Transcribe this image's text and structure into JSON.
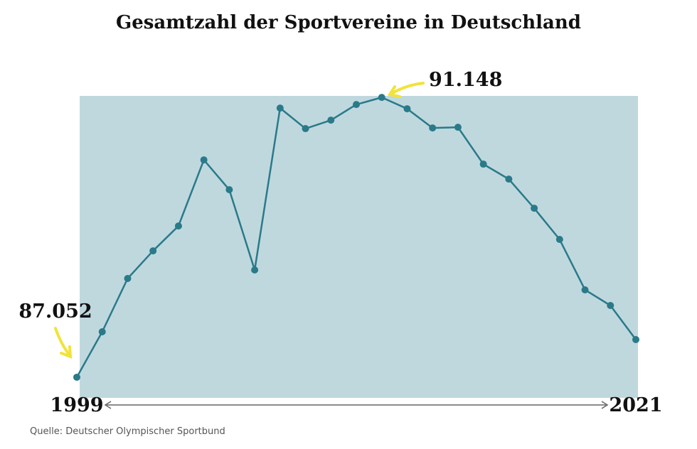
{
  "chart_data": {
    "type": "line",
    "title": "Gesamtzahl der Sportvereine in Deutschland",
    "source": "Quelle: Deutscher Olympischer Sportbund",
    "x": [
      1999,
      2000,
      2001,
      2002,
      2003,
      2004,
      2005,
      2006,
      2007,
      2008,
      2009,
      2010,
      2011,
      2012,
      2013,
      2014,
      2015,
      2016,
      2017,
      2018,
      2019,
      2020,
      2021
    ],
    "values": [
      87052,
      87717,
      88497,
      88902,
      89266,
      90233,
      89797,
      88622,
      90992,
      90691,
      90815,
      91044,
      91148,
      90982,
      90701,
      90711,
      90171,
      89952,
      89526,
      89069,
      88331,
      88102,
      87603
    ],
    "value_labels": [
      "87.052",
      null,
      null,
      null,
      null,
      null,
      null,
      null,
      null,
      null,
      null,
      null,
      "91.148",
      null,
      null,
      null,
      null,
      null,
      null,
      null,
      null,
      null,
      null
    ],
    "color": "#2a7a89",
    "xlim": [
      1999,
      2021
    ],
    "xticks": [
      1999,
      2021
    ],
    "ylim": [
      86750,
      91170
    ]
  }
}
